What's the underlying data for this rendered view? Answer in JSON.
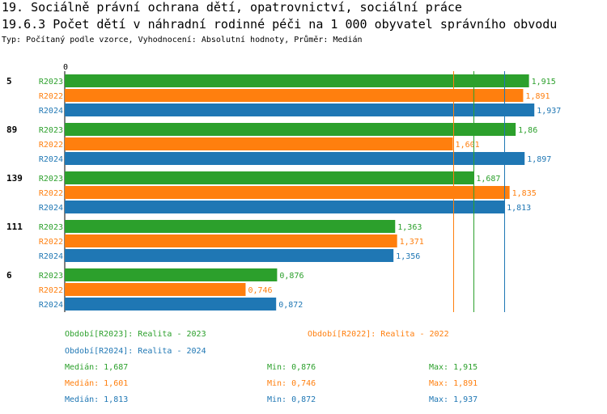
{
  "header": {
    "title": "19. Sociálně právní ochrana dětí, opatrovnictví, sociální práce",
    "subtitle": "19.6.3 Počet dětí v náhradní rodinné péči na 1 000 obyvatel správního obvodu",
    "info": "Typ: Počítaný podle vzorce, Vyhodnocení: Absolutní hodnoty, Průměr: Medián"
  },
  "colors": {
    "R2023": "#2ca02c",
    "R2022": "#ff7f0e",
    "R2024": "#1f77b4"
  },
  "chart_data": {
    "type": "bar",
    "orientation": "horizontal",
    "axis_zero_label": "0",
    "xlim": [
      0,
      2.17
    ],
    "series_order": [
      "R2023",
      "R2022",
      "R2024"
    ],
    "groups": [
      {
        "label": "5",
        "values": {
          "R2023": "1,915",
          "R2022": "1,891",
          "R2024": "1,937"
        }
      },
      {
        "label": "89",
        "values": {
          "R2023": "1,86",
          "R2022": "1,601",
          "R2024": "1,897"
        }
      },
      {
        "label": "139",
        "values": {
          "R2023": "1,687",
          "R2022": "1,835",
          "R2024": "1,813"
        }
      },
      {
        "label": "111",
        "values": {
          "R2023": "1,363",
          "R2022": "1,371",
          "R2024": "1,356"
        }
      },
      {
        "label": "6",
        "values": {
          "R2023": "0,876",
          "R2022": "0,746",
          "R2024": "0,872"
        }
      }
    ],
    "median_lines": {
      "R2023": 1.687,
      "R2022": 1.601,
      "R2024": 1.813
    }
  },
  "legend": {
    "r2023": "Období[R2023]: Realita - 2023",
    "r2022": "Období[R2022]: Realita - 2022",
    "r2024": "Období[R2024]: Realita - 2024"
  },
  "stats": [
    {
      "series": "R2023",
      "median": "Medián: 1,687",
      "min": "Min: 0,876",
      "max": "Max: 1,915"
    },
    {
      "series": "R2022",
      "median": "Medián: 1,601",
      "min": "Min: 0,746",
      "max": "Max: 1,891"
    },
    {
      "series": "R2024",
      "median": "Medián: 1,813",
      "min": "Min: 0,872",
      "max": "Max: 1,937"
    }
  ]
}
